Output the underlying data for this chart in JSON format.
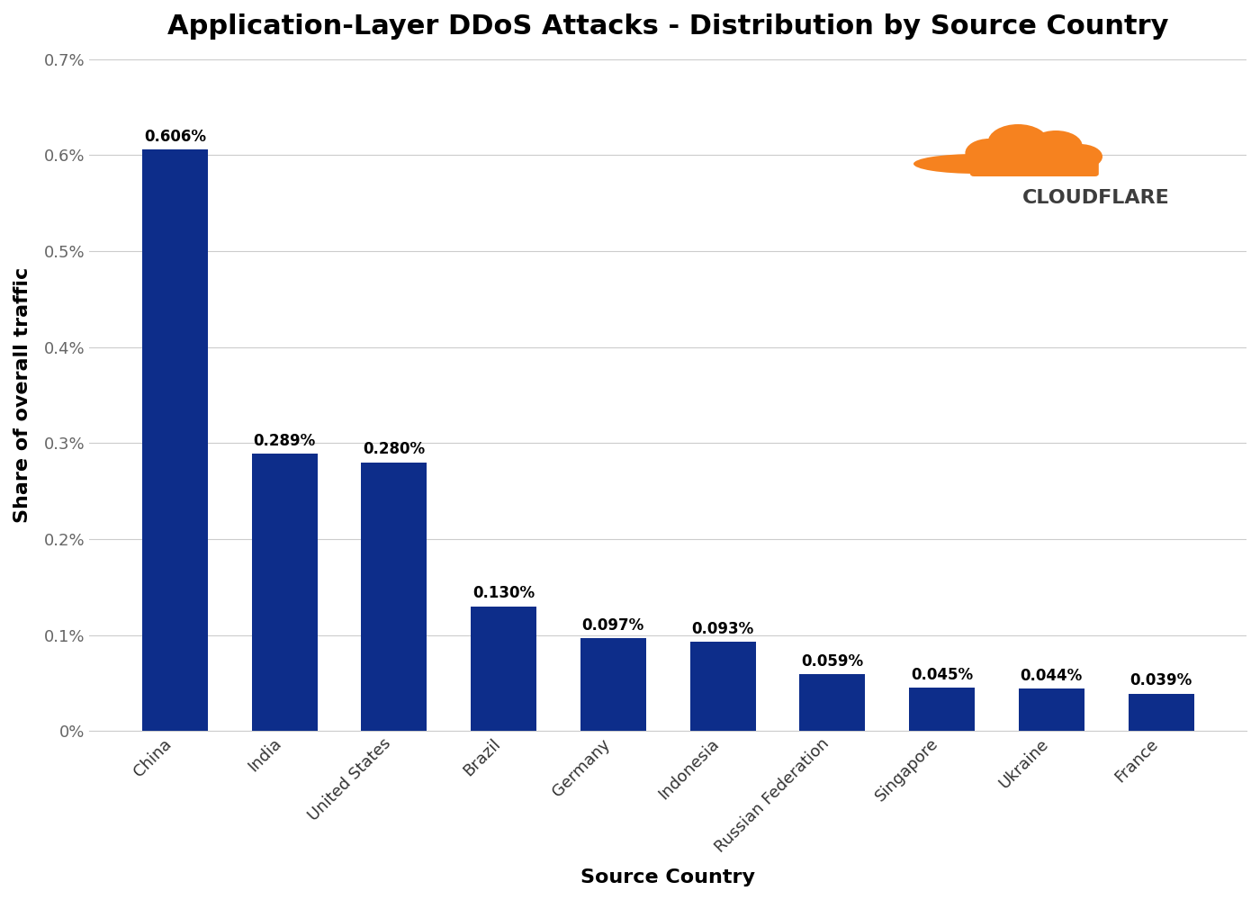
{
  "title": "Application-Layer DDoS Attacks - Distribution by Source Country",
  "xlabel": "Source Country",
  "ylabel": "Share of overall traffic",
  "categories": [
    "China",
    "India",
    "United States",
    "Brazil",
    "Germany",
    "Indonesia",
    "Russian Federation",
    "Singapore",
    "Ukraine",
    "France"
  ],
  "values": [
    0.606,
    0.289,
    0.28,
    0.13,
    0.097,
    0.093,
    0.059,
    0.045,
    0.044,
    0.039
  ],
  "labels": [
    "0.606%",
    "0.289%",
    "0.280%",
    "0.130%",
    "0.097%",
    "0.093%",
    "0.059%",
    "0.045%",
    "0.044%",
    "0.039%"
  ],
  "bar_color": "#0d2d8a",
  "background_color": "#ffffff",
  "ylim": [
    0,
    0.7
  ],
  "yticks": [
    0.0,
    0.1,
    0.2,
    0.3,
    0.4,
    0.5,
    0.6,
    0.7
  ],
  "ytick_labels": [
    "0%",
    "0.1%",
    "0.2%",
    "0.3%",
    "0.4%",
    "0.5%",
    "0.6%",
    "0.7%"
  ],
  "title_fontsize": 22,
  "axis_label_fontsize": 16,
  "tick_fontsize": 13,
  "bar_label_fontsize": 12,
  "cloudflare_text": "CLOUDFLARE",
  "cloudflare_text_color": "#3d3d3d",
  "cloudflare_fontsize": 16,
  "cloud_color": "#f6821f"
}
